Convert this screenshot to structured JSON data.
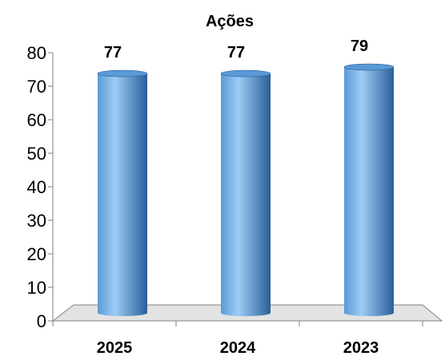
{
  "chart_data": {
    "type": "bar",
    "title": "Ações",
    "categories": [
      "2025",
      "2024",
      "2023"
    ],
    "values": [
      77,
      77,
      79
    ],
    "data_labels": [
      "77",
      "77",
      "79"
    ],
    "xlabel": "",
    "ylabel": "",
    "ylim": [
      0,
      80
    ],
    "yticks": [
      "0",
      "10",
      "20",
      "30",
      "40",
      "50",
      "60",
      "70",
      "80"
    ],
    "grid": false,
    "legend": "none",
    "style": "3d-cylinder",
    "colors": {
      "bar_light": "#9dcdf5",
      "bar_mid": "#5a9ad6",
      "bar_dark": "#2a5f9a",
      "floor": "#e3e3e3",
      "axis": "#808080"
    }
  }
}
